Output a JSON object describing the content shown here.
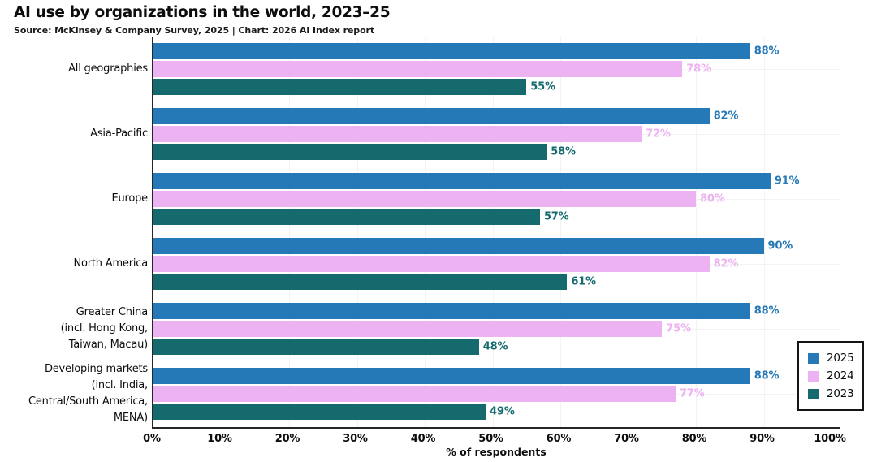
{
  "header": {
    "title": "AI use by organizations in the world, 2023–25",
    "source": "Source: McKinsey & Company Survey, 2025 | Chart: 2026 AI Index report"
  },
  "chart_data": {
    "type": "bar",
    "orientation": "horizontal",
    "title": "AI use by organizations in the world, 2023–25",
    "subtitle": "Source: McKinsey & Company Survey, 2025 | Chart: 2026 AI Index report",
    "xlabel": "% of respondents",
    "xlim": [
      0,
      100
    ],
    "x_ticks": [
      "0%",
      "10%",
      "20%",
      "30%",
      "40%",
      "50%",
      "60%",
      "70%",
      "80%",
      "90%",
      "100%"
    ],
    "grid": true,
    "legend_position": "lower right",
    "categories": [
      {
        "lines": [
          "All geographies"
        ]
      },
      {
        "lines": [
          "Asia-Pacific"
        ]
      },
      {
        "lines": [
          "Europe"
        ]
      },
      {
        "lines": [
          "North America"
        ]
      },
      {
        "lines": [
          "Greater China",
          "(incl. Hong Kong,",
          "Taiwan, Macau)"
        ]
      },
      {
        "lines": [
          "Developing markets",
          "(incl. India,",
          "Central/South America,",
          "MENA)"
        ]
      }
    ],
    "series": [
      {
        "name": "2025",
        "color": "#2579b7",
        "values": [
          88,
          82,
          91,
          90,
          88,
          88
        ]
      },
      {
        "name": "2024",
        "color": "#ecb2f1",
        "values": [
          78,
          72,
          80,
          82,
          75,
          77
        ]
      },
      {
        "name": "2023",
        "color": "#156a6e",
        "values": [
          55,
          58,
          57,
          61,
          48,
          49
        ]
      }
    ],
    "value_suffix": "%",
    "colors": {
      "axis": "#262626",
      "grid": "#f3f3f3",
      "text": "#0d0d0d",
      "background": "#ffffff"
    }
  }
}
